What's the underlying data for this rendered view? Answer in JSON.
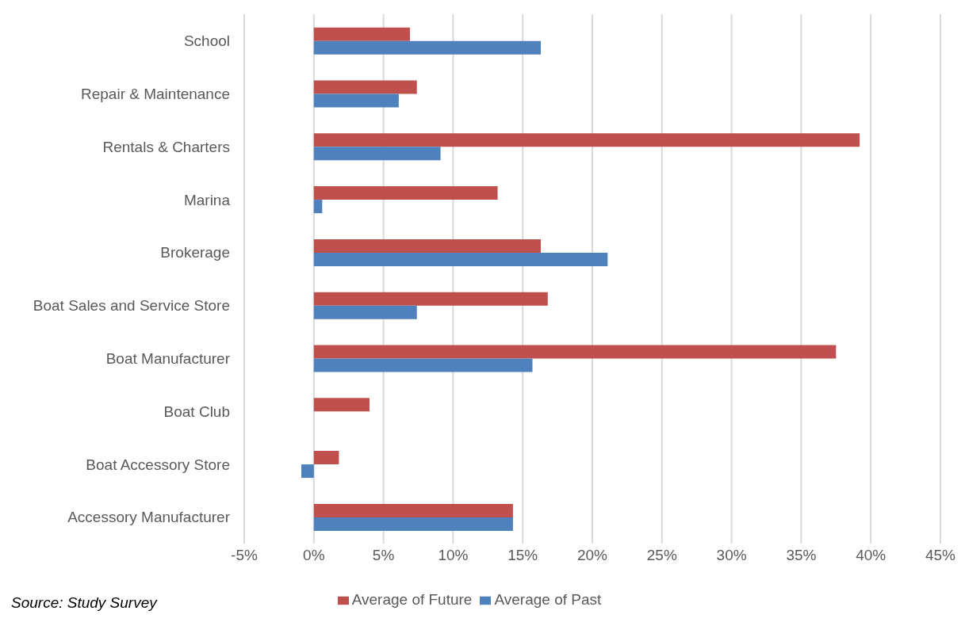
{
  "chart_data": {
    "type": "bar",
    "orientation": "horizontal",
    "categories": [
      "School",
      "Repair & Maintenance",
      "Rentals & Charters",
      "Marina",
      "Brokerage",
      "Boat Sales and Service Store",
      "Boat Manufacturer",
      "Boat Club",
      "Boat Accessory Store",
      "Accessory Manufacturer"
    ],
    "series": [
      {
        "name": "Average of Future",
        "color": "#c0504d",
        "values": [
          6.9,
          7.4,
          39.2,
          13.2,
          16.3,
          16.8,
          37.5,
          4.0,
          1.8,
          14.3
        ]
      },
      {
        "name": "Average of Past",
        "color": "#4f81bd",
        "values": [
          16.3,
          6.1,
          9.1,
          0.6,
          21.1,
          7.4,
          15.7,
          null,
          -0.9,
          14.3
        ]
      }
    ],
    "xlim": [
      -5,
      45
    ],
    "xticks": [
      {
        "value": -5,
        "label": "-5%"
      },
      {
        "value": 0,
        "label": "0%"
      },
      {
        "value": 5,
        "label": "5%"
      },
      {
        "value": 10,
        "label": "10%"
      },
      {
        "value": 15,
        "label": "15%"
      },
      {
        "value": 20,
        "label": "20%"
      },
      {
        "value": 25,
        "label": "25%"
      },
      {
        "value": 30,
        "label": "30%"
      },
      {
        "value": 35,
        "label": "35%"
      },
      {
        "value": 40,
        "label": "40%"
      },
      {
        "value": 45,
        "label": "45%"
      }
    ],
    "grid": "x",
    "legend": "bottom",
    "annotations": [
      "Source: Study Survey"
    ]
  }
}
